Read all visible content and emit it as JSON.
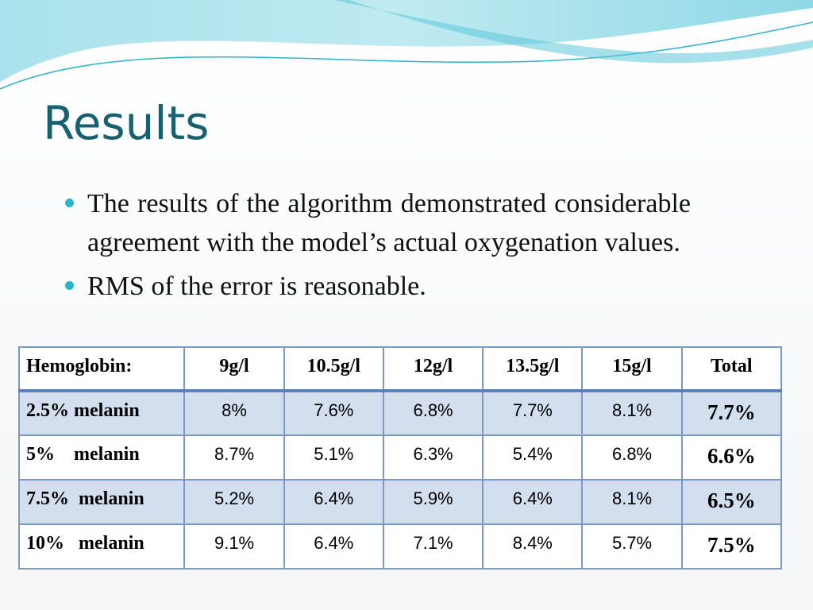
{
  "title": "Results",
  "bullets": [
    "The results of the algorithm demonstrated considerable agreement with the model’s actual oxygenation values.",
    "RMS of the error is reasonable."
  ],
  "table": {
    "headers": [
      "Hemoglobin:",
      "9g/l",
      "10.5g/l",
      "12g/l",
      "13.5g/l",
      "15g/l",
      "Total"
    ],
    "rows": [
      {
        "label": "2.5% melanin",
        "values": [
          "8%",
          "7.6%",
          "6.8%",
          "7.7%",
          "8.1%"
        ],
        "total": "7.7%"
      },
      {
        "label": "5%    melanin",
        "values": [
          "8.7%",
          "5.1%",
          "6.3%",
          "5.4%",
          "6.8%"
        ],
        "total": "6.6%"
      },
      {
        "label": "7.5%  melanin",
        "values": [
          "5.2%",
          "6.4%",
          "5.9%",
          "6.4%",
          "8.1%"
        ],
        "total": "6.5%"
      },
      {
        "label": "10%   melanin",
        "values": [
          "9.1%",
          "6.4%",
          "7.1%",
          "8.4%",
          "5.7%"
        ],
        "total": "7.5%"
      }
    ]
  },
  "colors": {
    "title": "#17606e",
    "bullet": "#2ab5c7",
    "table_border": "#7a99c9",
    "row_shade": "#d3dfee",
    "wave_light": "#bfe9f0",
    "wave_dark": "#2ab5c7"
  }
}
